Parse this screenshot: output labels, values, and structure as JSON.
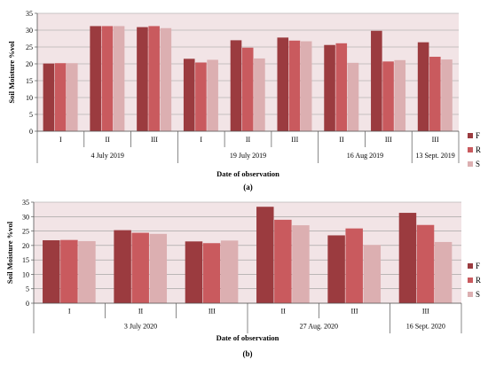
{
  "colors": {
    "F": "#9B3B3F",
    "R": "#C95A5E",
    "S": "#DCAFB1",
    "plot_bg": "#F2E4E6"
  },
  "chart_data": [
    {
      "type": "bar",
      "panel_label": "(a)",
      "ylabel": "Soil Moisture %vol",
      "xlabel": "Date of observation",
      "ylim": [
        0,
        35
      ],
      "yticks": [
        0,
        5,
        10,
        15,
        20,
        25,
        30,
        35
      ],
      "categories": [
        "I",
        "II",
        "III",
        "I",
        "II",
        "III",
        "II",
        "III",
        "III"
      ],
      "groups": [
        {
          "label": "4 July 2019",
          "span": 3
        },
        {
          "label": "19 July 2019",
          "span": 3
        },
        {
          "label": "16 Aug 2019",
          "span": 2
        },
        {
          "label": "13 Sept. 2019",
          "span": 1
        }
      ],
      "series": [
        {
          "name": "F",
          "values": [
            20.1,
            31.2,
            30.9,
            21.5,
            27.0,
            27.8,
            25.6,
            29.8,
            26.4
          ]
        },
        {
          "name": "R",
          "values": [
            20.2,
            31.2,
            31.2,
            20.4,
            24.8,
            26.9,
            26.1,
            20.7,
            22.1
          ]
        },
        {
          "name": "S",
          "values": [
            20.2,
            31.2,
            30.6,
            21.2,
            21.6,
            26.7,
            20.3,
            21.1,
            21.3
          ]
        }
      ],
      "legend": "right"
    },
    {
      "type": "bar",
      "panel_label": "(b)",
      "ylabel": "Soil Moisture %vol",
      "xlabel": "Date of observation",
      "ylim": [
        0,
        35
      ],
      "yticks": [
        0,
        5,
        10,
        15,
        20,
        25,
        30,
        35
      ],
      "categories": [
        "I",
        "II",
        "III",
        "II",
        "III",
        "III"
      ],
      "groups": [
        {
          "label": "3 July 2020",
          "span": 3
        },
        {
          "label": "27 Aug. 2020",
          "span": 2
        },
        {
          "label": "16 Sept. 2020",
          "span": 1
        }
      ],
      "series": [
        {
          "name": "F",
          "values": [
            21.8,
            25.3,
            21.4,
            33.4,
            23.5,
            31.3
          ]
        },
        {
          "name": "R",
          "values": [
            21.9,
            24.4,
            20.8,
            28.9,
            25.9,
            27.1
          ]
        },
        {
          "name": "S",
          "values": [
            21.5,
            24.0,
            21.7,
            27.0,
            20.2,
            21.2
          ]
        }
      ],
      "legend": "right"
    }
  ]
}
